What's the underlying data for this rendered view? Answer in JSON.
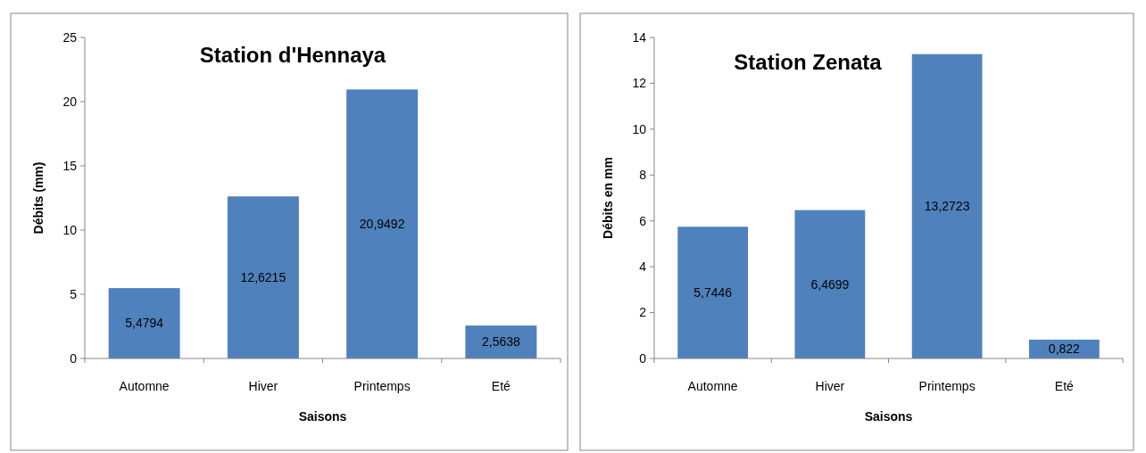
{
  "chart_data": [
    {
      "type": "bar",
      "title": "Station d'Hennaya",
      "xlabel": "Saisons",
      "ylabel": "Débits (mm)",
      "categories": [
        "Automne",
        "Hiver",
        "Printemps",
        "Eté"
      ],
      "values": [
        5.4794,
        12.6215,
        20.9492,
        2.5638
      ],
      "value_labels": [
        "5,4794",
        "12,6215",
        "20,9492",
        "2,5638"
      ],
      "color": "#4f81bd",
      "ylim": [
        0,
        25
      ],
      "yticks": [
        0,
        5,
        10,
        15,
        20,
        25
      ]
    },
    {
      "type": "bar",
      "title": "Station Zenata",
      "xlabel": "Saisons",
      "ylabel": "Débits en mm",
      "categories": [
        "Automne",
        "Hiver",
        "Printemps",
        "Eté"
      ],
      "values": [
        5.7446,
        6.4699,
        13.2723,
        0.822
      ],
      "value_labels": [
        "5,7446",
        "6,4699",
        "13,2723",
        "0,822"
      ],
      "color": "#4f81bd",
      "ylim": [
        0,
        14
      ],
      "yticks": [
        0,
        2,
        4,
        6,
        8,
        10,
        12,
        14
      ]
    }
  ]
}
